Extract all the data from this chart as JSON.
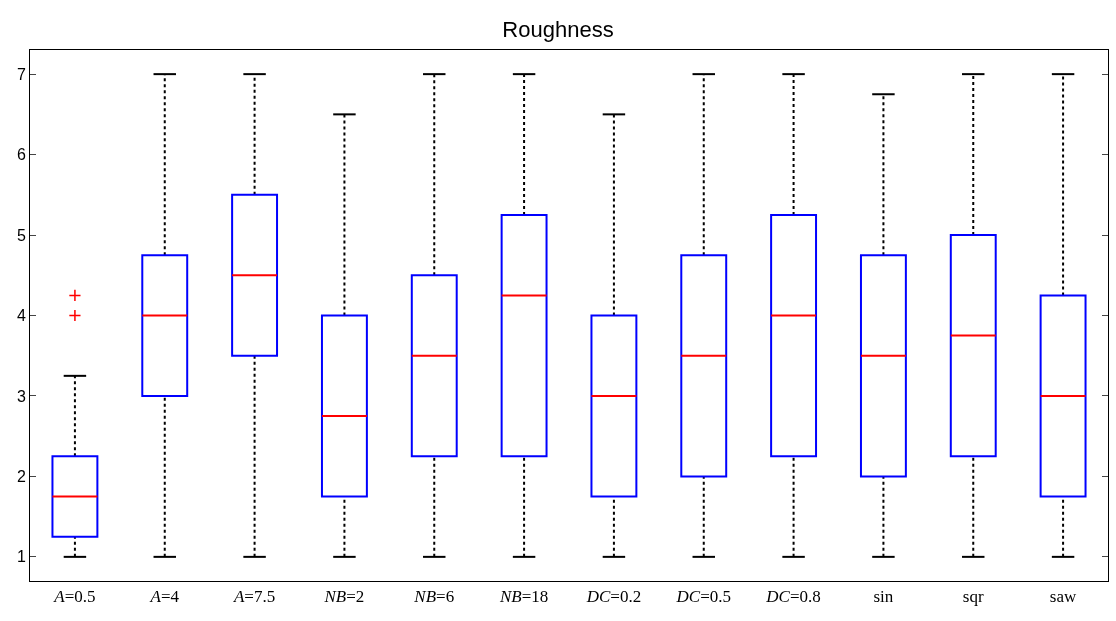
{
  "chart_data": {
    "type": "box",
    "title": "Roughness",
    "categories": [
      "A=0.5",
      "A=4",
      "A=7.5",
      "NB=2",
      "NB=6",
      "NB=18",
      "DC=0.2",
      "DC=0.5",
      "DC=0.8",
      "sin",
      "sqr",
      "saw"
    ],
    "ylim": [
      0.7,
      7.3
    ],
    "yticks": [
      1,
      2,
      3,
      4,
      5,
      6,
      7
    ],
    "series": [
      {
        "color": "#0000ff",
        "boxes": [
          {
            "low": 1,
            "q1": 1.25,
            "median": 1.75,
            "q3": 2.25,
            "high": 3.25,
            "outliers": [
              4,
              4.25
            ]
          },
          {
            "low": 1,
            "q1": 3,
            "median": 4,
            "q3": 4.75,
            "high": 7
          },
          {
            "low": 1,
            "q1": 3.5,
            "median": 4.5,
            "q3": 5.5,
            "high": 7
          },
          {
            "low": 1,
            "q1": 1.75,
            "median": 2.75,
            "q3": 4,
            "high": 6.5
          },
          {
            "low": 1,
            "q1": 2.25,
            "median": 3.5,
            "q3": 4.5,
            "high": 7
          },
          {
            "low": 1,
            "q1": 2.25,
            "median": 4.25,
            "q3": 5.25,
            "high": 7
          },
          {
            "low": 1,
            "q1": 1.75,
            "median": 3,
            "q3": 4,
            "high": 6.5
          },
          {
            "low": 1,
            "q1": 2,
            "median": 3.5,
            "q3": 4.75,
            "high": 7
          },
          {
            "low": 1,
            "q1": 2.25,
            "median": 4,
            "q3": 5.25,
            "high": 7
          },
          {
            "low": 1,
            "q1": 2,
            "median": 3.5,
            "q3": 4.75,
            "high": 6.75
          },
          {
            "low": 1,
            "q1": 2.25,
            "median": 3.75,
            "q3": 5,
            "high": 7
          },
          {
            "low": 1,
            "q1": 1.75,
            "median": 3,
            "q3": 4.25,
            "high": 7
          }
        ]
      }
    ]
  }
}
